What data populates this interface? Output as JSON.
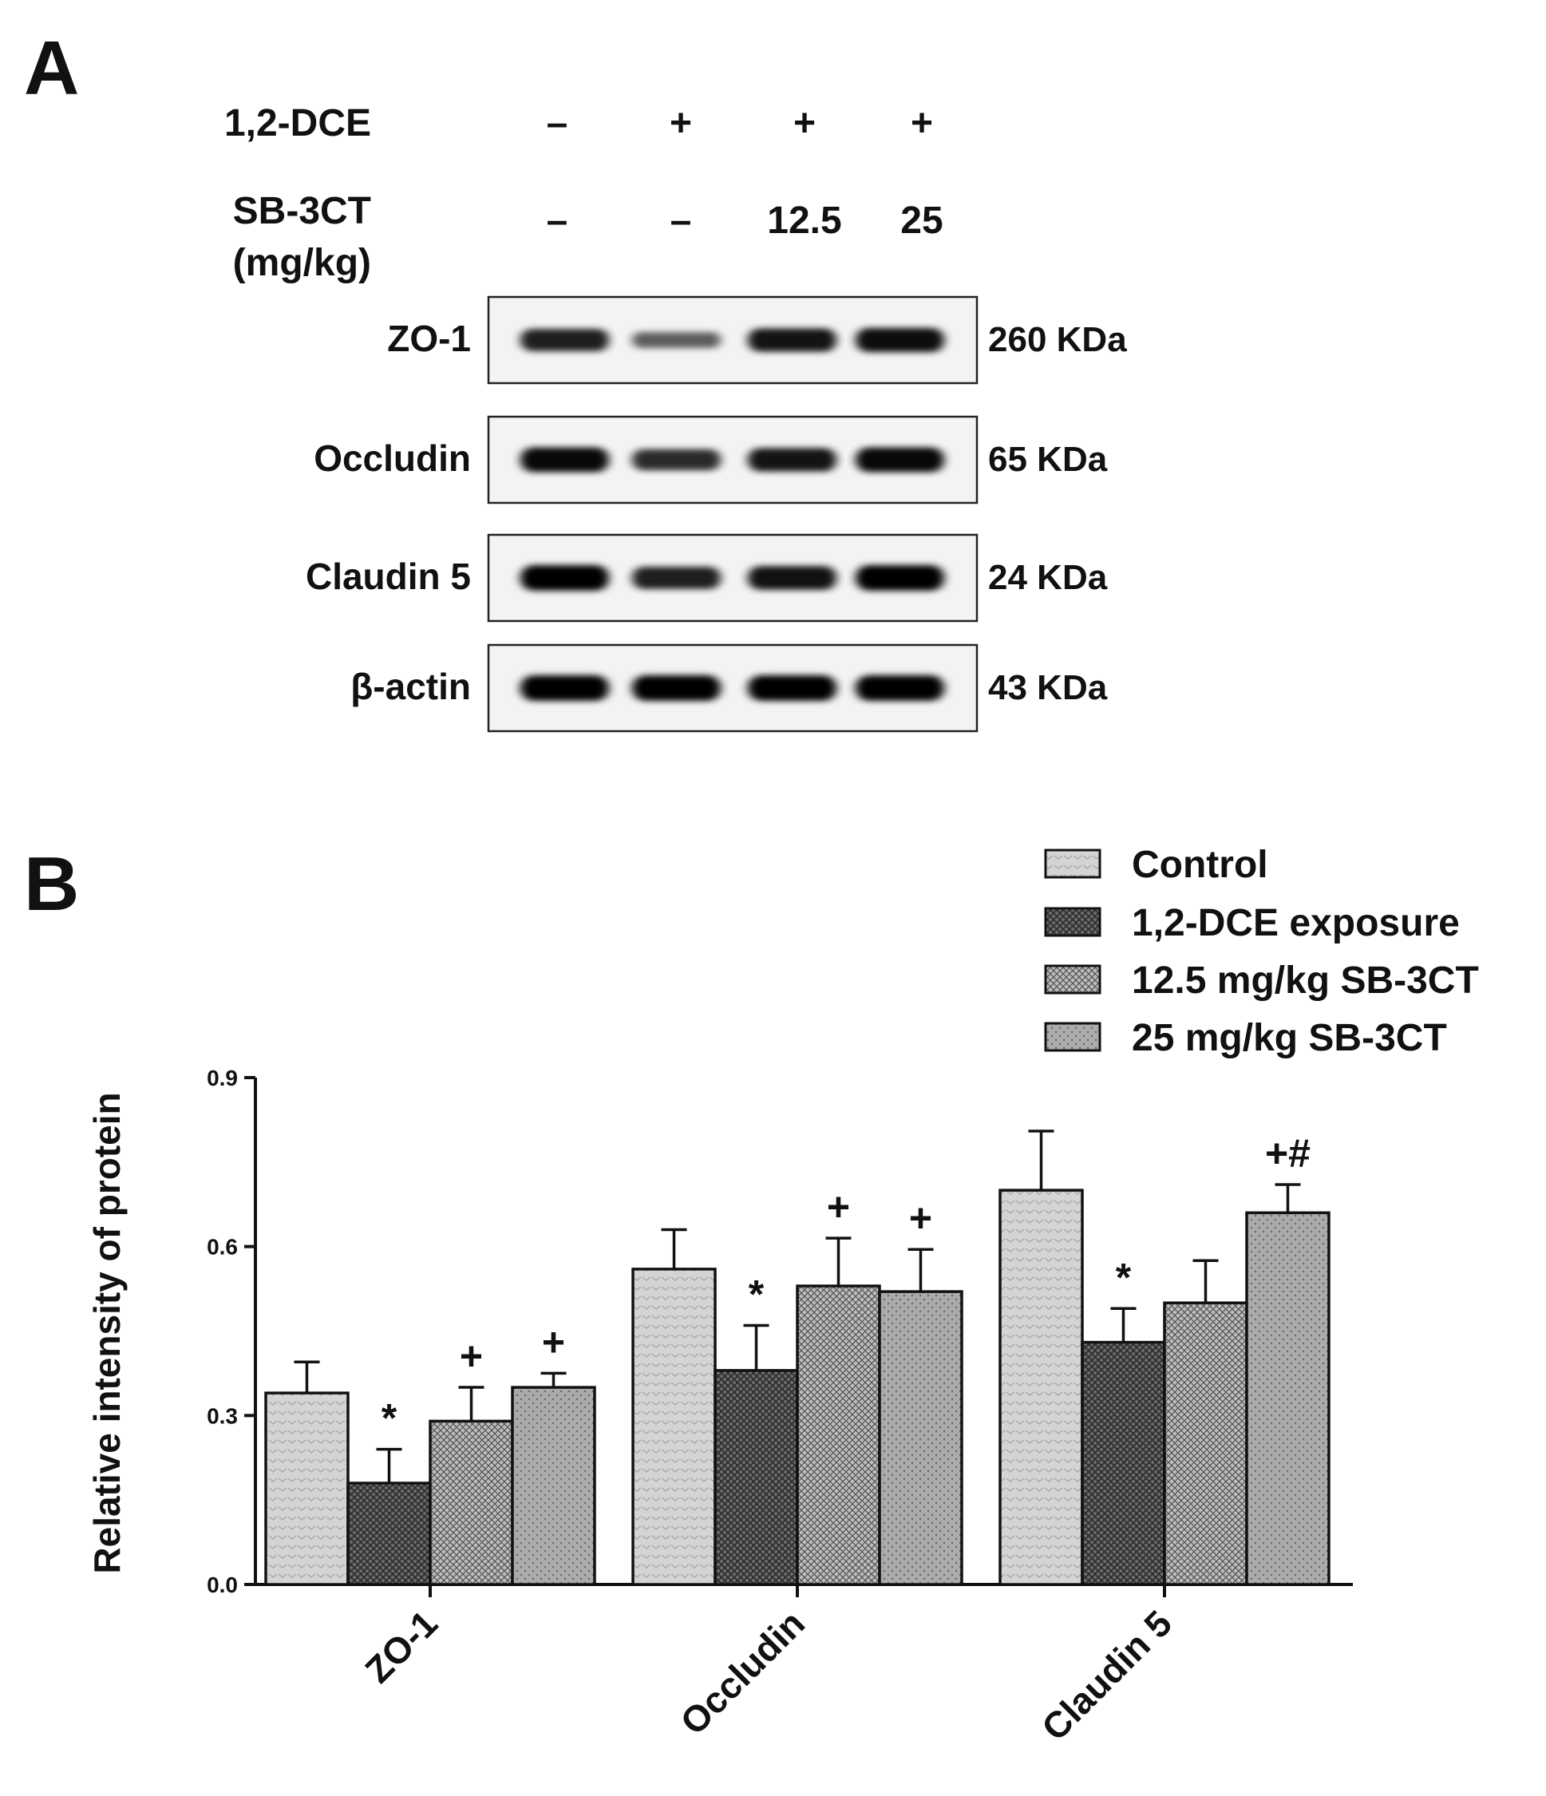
{
  "panel_a": {
    "letter": "A",
    "conditions": [
      {
        "label": "1,2-DCE",
        "values": [
          "–",
          "+",
          "+",
          "+"
        ]
      },
      {
        "label": "SB-3CT",
        "label_line2": "(mg/kg)",
        "values": [
          "–",
          "–",
          "12.5",
          "25"
        ]
      }
    ],
    "blots": [
      {
        "label": "ZO-1",
        "kda": "260 KDa",
        "intensity": [
          0.82,
          0.45,
          0.88,
          0.92
        ]
      },
      {
        "label": "Occludin",
        "kda": "65 KDa",
        "intensity": [
          0.95,
          0.75,
          0.88,
          0.95
        ]
      },
      {
        "label": "Claudin 5",
        "kda": "24 KDa",
        "intensity": [
          1.0,
          0.82,
          0.9,
          1.0
        ]
      },
      {
        "label": "β-actin",
        "kda": "43 KDa",
        "intensity": [
          1.0,
          1.0,
          1.0,
          1.0
        ]
      }
    ]
  },
  "panel_b": {
    "letter": "B"
  },
  "colors": {
    "ink": "#111111",
    "control": "#d2d2d2",
    "dce": "#5a5a5a",
    "sb125": "#9a9a9a",
    "sb25": "#a9a9a9"
  },
  "chart_data": {
    "type": "bar",
    "title": "",
    "xlabel": "",
    "ylabel": "Relative intensity of protein",
    "ylim": [
      0,
      0.9
    ],
    "yticks": [
      "0.0",
      "0.3",
      "0.6",
      "0.9"
    ],
    "categories": [
      "ZO-1",
      "Occludin",
      "Claudin 5"
    ],
    "legend_position": "top-right",
    "series": [
      {
        "name": "Control",
        "values": [
          0.34,
          0.56,
          0.7
        ],
        "errors": [
          0.055,
          0.07,
          0.105
        ],
        "labels": [
          "",
          "",
          ""
        ]
      },
      {
        "name": "1,2-DCE exposure",
        "values": [
          0.18,
          0.38,
          0.43
        ],
        "errors": [
          0.06,
          0.08,
          0.06
        ],
        "labels": [
          "*",
          "*",
          "*"
        ]
      },
      {
        "name": "12.5 mg/kg SB-3CT",
        "values": [
          0.29,
          0.53,
          0.5
        ],
        "errors": [
          0.06,
          0.085,
          0.075
        ],
        "labels": [
          "+",
          "+",
          ""
        ]
      },
      {
        "name": "25 mg/kg SB-3CT",
        "values": [
          0.35,
          0.52,
          0.66
        ],
        "errors": [
          0.025,
          0.075,
          0.05
        ],
        "labels": [
          "+",
          "+",
          "+#"
        ]
      }
    ]
  }
}
